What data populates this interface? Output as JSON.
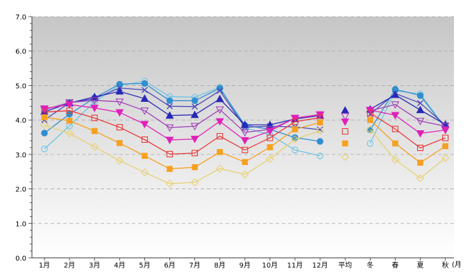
{
  "colors": {
    "background_top": "#c6c6c6",
    "background_bottom": "#ffffff",
    "grid": "#a9a9a9",
    "axis": "#333333"
  },
  "chart_data": {
    "type": "line",
    "categories": [
      "1月",
      "2月",
      "3月",
      "4月",
      "5月",
      "6月",
      "7月",
      "8月",
      "9月",
      "10月",
      "11月",
      "12月",
      "平均",
      "冬",
      "春",
      "夏",
      "秋"
    ],
    "x_unit": "(月",
    "ylim": [
      0,
      7
    ],
    "yticks": [
      "0.0",
      "1.0",
      "2.0",
      "3.0",
      "4.0",
      "5.0",
      "6.0",
      "7.0"
    ],
    "grid": "horizontal-dashed",
    "legend": "none",
    "series": [
      {
        "color": "#6ec3e3",
        "marker": "circle-open",
        "values": [
          3.16,
          3.83,
          4.53,
          5.0,
          5.13,
          4.68,
          4.66,
          4.95,
          3.78,
          3.57,
          3.13,
          2.96,
          null,
          3.32,
          4.85,
          4.76,
          3.77
        ]
      },
      {
        "color": "#2f8ecf",
        "marker": "circle",
        "values": [
          3.62,
          4.17,
          4.64,
          5.04,
          5.06,
          4.56,
          4.56,
          4.92,
          3.85,
          3.73,
          3.49,
          3.38,
          null,
          3.71,
          4.89,
          4.71,
          3.77
        ]
      },
      {
        "color": "#4a4ab8",
        "marker": "x",
        "values": [
          4.0,
          4.5,
          4.62,
          4.93,
          4.87,
          4.4,
          4.39,
          4.85,
          3.79,
          3.82,
          3.8,
          3.72,
          null,
          4.17,
          4.77,
          4.49,
          3.85
        ]
      },
      {
        "color": "#2828b8",
        "marker": "triangle",
        "values": [
          4.24,
          4.49,
          4.67,
          4.83,
          4.62,
          4.13,
          4.15,
          4.61,
          3.86,
          3.86,
          4.03,
          4.13,
          4.28,
          4.31,
          4.73,
          4.29,
          3.87
        ]
      },
      {
        "color": "#a040b8",
        "marker": "triangle-open-down",
        "values": [
          4.3,
          4.51,
          4.57,
          4.53,
          4.27,
          3.78,
          3.82,
          4.3,
          3.64,
          3.73,
          4.05,
          4.14,
          4.11,
          4.27,
          4.45,
          3.97,
          3.82
        ]
      },
      {
        "color": "#e020b8",
        "marker": "triangle-down",
        "values": [
          4.33,
          4.45,
          4.35,
          4.22,
          3.88,
          3.42,
          3.45,
          3.96,
          3.41,
          3.68,
          4.06,
          4.16,
          3.95,
          4.29,
          4.14,
          3.61,
          3.71
        ]
      },
      {
        "color": "#e83838",
        "marker": "square-open",
        "values": [
          4.23,
          4.27,
          4.06,
          3.79,
          3.43,
          3.01,
          3.04,
          3.53,
          3.13,
          3.48,
          3.95,
          4.07,
          3.67,
          4.2,
          3.74,
          3.19,
          3.48
        ]
      },
      {
        "color": "#f5a020",
        "marker": "square",
        "values": [
          4.08,
          3.98,
          3.68,
          3.33,
          2.96,
          2.58,
          2.63,
          3.07,
          2.78,
          3.21,
          3.73,
          3.93,
          3.32,
          4.0,
          3.32,
          2.76,
          3.24
        ]
      },
      {
        "color": "#e8d070",
        "marker": "diamond-open",
        "values": [
          3.85,
          3.61,
          3.22,
          2.82,
          2.48,
          2.15,
          2.19,
          2.59,
          2.42,
          2.87,
          3.44,
          3.69,
          2.93,
          3.72,
          2.85,
          2.31,
          2.9
        ]
      }
    ]
  }
}
